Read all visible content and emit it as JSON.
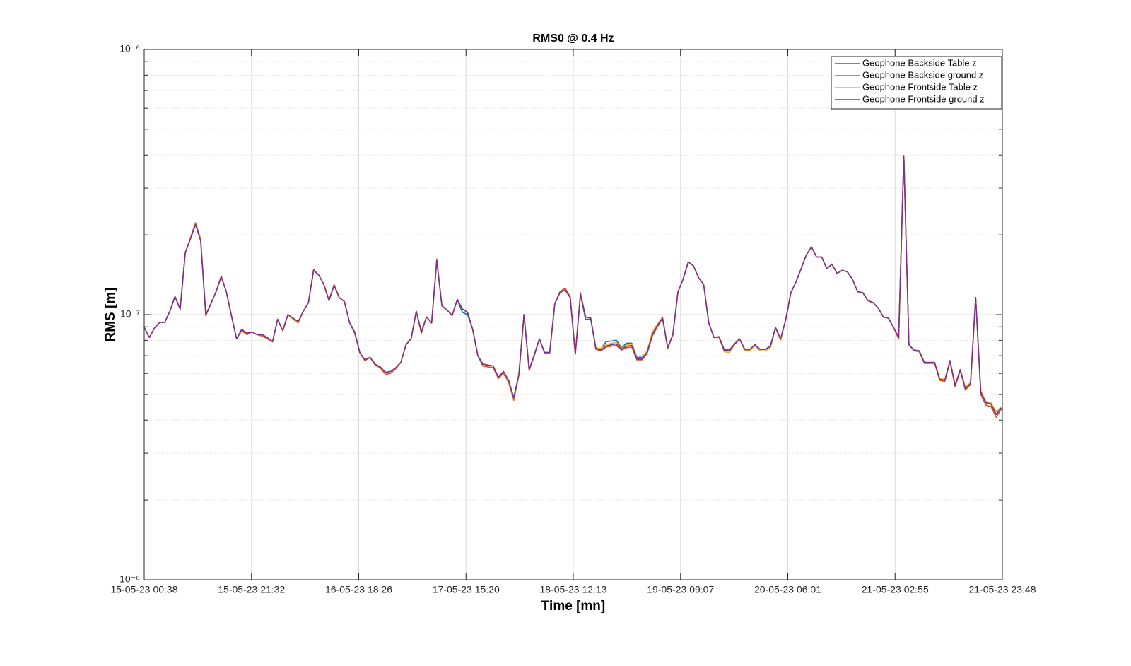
{
  "chart_data": {
    "type": "line",
    "title": "RMS0 @ 0.4 Hz",
    "x_label": "Time [mn]",
    "y_label": "RMS [m]",
    "yscale": "log",
    "grid": true,
    "minor_grid": true,
    "legend": "northeast",
    "xlim": [
      0,
      167.2
    ],
    "xticks": [
      {
        "value": 0,
        "label": "15-05-23 00:38"
      },
      {
        "value": 20.9,
        "label": "15-05-23 21:32"
      },
      {
        "value": 41.8,
        "label": "16-05-23 18:26"
      },
      {
        "value": 62.7,
        "label": "17-05-23 15:20"
      },
      {
        "value": 83.6,
        "label": "18-05-23 12:13"
      },
      {
        "value": 104.5,
        "label": "19-05-23 09:07"
      },
      {
        "value": 125.4,
        "label": "20-05-23 06:01"
      },
      {
        "value": 146.3,
        "label": "21-05-23 02:55"
      },
      {
        "value": 167.2,
        "label": "21-05-23 23:48"
      }
    ],
    "ylim": [
      1e-08,
      1e-06
    ],
    "yticks": [
      {
        "value": 1e-08,
        "label": "10⁻⁸"
      },
      {
        "value": 1e-07,
        "label": "10⁻⁷"
      },
      {
        "value": 1e-06,
        "label": "10⁻⁶"
      }
    ],
    "x": [
      0,
      1,
      2,
      3,
      4,
      5,
      6,
      7,
      8,
      9,
      10,
      11,
      12,
      13,
      14,
      15,
      16,
      17,
      18,
      19,
      20,
      21,
      22,
      23,
      24,
      25,
      26,
      27,
      28,
      29,
      30,
      31,
      32,
      33,
      34,
      35,
      36,
      37,
      38,
      39,
      40,
      41,
      42,
      43,
      44,
      45,
      46,
      47,
      48,
      49,
      50,
      51,
      52,
      53,
      54,
      55,
      56,
      57,
      58,
      59,
      60,
      61,
      62,
      63,
      64,
      65,
      66,
      67,
      68,
      69,
      70,
      71,
      72,
      73,
      74,
      75,
      76,
      77,
      78,
      79,
      80,
      81,
      82,
      83,
      84,
      85,
      86,
      87,
      88,
      89,
      90,
      91,
      92,
      93,
      94,
      95,
      96,
      97,
      98,
      99,
      100,
      101,
      102,
      103,
      104,
      105,
      106,
      107,
      108,
      109,
      110,
      111,
      112,
      113,
      114,
      115,
      116,
      117,
      118,
      119,
      120,
      121,
      122,
      123,
      124,
      125,
      126,
      127,
      128,
      129,
      130,
      131,
      132,
      133,
      134,
      135,
      136,
      137,
      138,
      139,
      140,
      141,
      142,
      143,
      144,
      145,
      146,
      147,
      148,
      149,
      150,
      151,
      152,
      153,
      154,
      155,
      156,
      157,
      158,
      159,
      160,
      161,
      162,
      163,
      164,
      165,
      166,
      167
    ],
    "series": [
      {
        "name": "Geophone Backside Table z",
        "color": "#0072BD",
        "values": [
          8.95e-08,
          8.2e-08,
          8.9e-08,
          9.35e-08,
          9.35e-08,
          1.03e-07,
          1.17e-07,
          1.05e-07,
          1.71e-07,
          1.93e-07,
          2.19e-07,
          1.9e-07,
          1e-07,
          1.1e-07,
          1.22e-07,
          1.39e-07,
          1.22e-07,
          9.9e-08,
          8.1e-08,
          8.8e-08,
          8.5e-08,
          8.6e-08,
          8.4e-08,
          8.4e-08,
          8.2e-08,
          7.9e-08,
          9.6e-08,
          8.7e-08,
          1e-07,
          9.7e-08,
          9.4e-08,
          1.03e-07,
          1.11e-07,
          1.47e-07,
          1.41e-07,
          1.3e-07,
          1.13e-07,
          1.29e-07,
          1.16e-07,
          1.12e-07,
          9.35e-08,
          8.6e-08,
          7.2e-08,
          6.75e-08,
          6.9e-08,
          6.5e-08,
          6.35e-08,
          6.05e-08,
          6.1e-08,
          6.3e-08,
          6.6e-08,
          7.7e-08,
          8.1e-08,
          1.03e-07,
          8.6e-08,
          9.8e-08,
          9.3e-08,
          1.6e-07,
          1.08e-07,
          1.04e-07,
          9.95e-08,
          1.14e-07,
          1.02e-07,
          1e-07,
          8.8e-08,
          7e-08,
          6.5e-08,
          6.45e-08,
          6.4e-08,
          5.8e-08,
          6.1e-08,
          5.65e-08,
          4.85e-08,
          5.95e-08,
          1e-07,
          6.2e-08,
          7.05e-08,
          8.1e-08,
          7.2e-08,
          7.2e-08,
          1.1e-07,
          1.21e-07,
          1.24e-07,
          1.16e-07,
          7.1e-08,
          1.19e-07,
          9.6e-08,
          9.6e-08,
          7.45e-08,
          7.45e-08,
          7.9e-08,
          7.95e-08,
          8e-08,
          7.5e-08,
          7.8e-08,
          7.8e-08,
          6.9e-08,
          6.9e-08,
          7.3e-08,
          8.4e-08,
          9.1e-08,
          9.7e-08,
          7.5e-08,
          8.4e-08,
          1.22e-07,
          1.36e-07,
          1.58e-07,
          1.53e-07,
          1.38e-07,
          1.3e-07,
          9.3e-08,
          8.2e-08,
          8.25e-08,
          7.4e-08,
          7.35e-08,
          7.75e-08,
          8.1e-08,
          7.4e-08,
          7.4e-08,
          7.7e-08,
          7.4e-08,
          7.4e-08,
          7.6e-08,
          8.95e-08,
          8.1e-08,
          9.6e-08,
          1.21e-07,
          1.33e-07,
          1.49e-07,
          1.68e-07,
          1.8e-07,
          1.65e-07,
          1.65e-07,
          1.49e-07,
          1.55e-07,
          1.43e-07,
          1.47e-07,
          1.45e-07,
          1.36e-07,
          1.22e-07,
          1.21e-07,
          1.13e-07,
          1.11e-07,
          1.06e-07,
          9.8e-08,
          9.7e-08,
          8.95e-08,
          8.2e-08,
          3.98e-07,
          7.7e-08,
          7.35e-08,
          7.3e-08,
          6.6e-08,
          6.6e-08,
          6.6e-08,
          5.7e-08,
          5.65e-08,
          6.7e-08,
          5.4e-08,
          6.2e-08,
          5.25e-08,
          5.5e-08,
          1.16e-07,
          5.1e-08,
          4.65e-08,
          4.6e-08,
          4.2e-08,
          4.45e-08
        ]
      },
      {
        "name": "Geophone Backside ground z",
        "color": "#D95319",
        "values": [
          8.95e-08,
          8.2e-08,
          8.9e-08,
          9.35e-08,
          9.35e-08,
          1.03e-07,
          1.17e-07,
          1.05e-07,
          1.71e-07,
          1.95e-07,
          2.22e-07,
          1.93e-07,
          9.9e-08,
          1.1e-07,
          1.22e-07,
          1.4e-07,
          1.22e-07,
          9.9e-08,
          8.1e-08,
          8.7e-08,
          8.4e-08,
          8.6e-08,
          8.4e-08,
          8.3e-08,
          8.1e-08,
          7.9e-08,
          9.6e-08,
          8.7e-08,
          1e-07,
          9.6e-08,
          9.3e-08,
          1.03e-07,
          1.11e-07,
          1.48e-07,
          1.41e-07,
          1.3e-07,
          1.13e-07,
          1.3e-07,
          1.16e-07,
          1.12e-07,
          9.35e-08,
          8.5e-08,
          7.2e-08,
          6.7e-08,
          6.9e-08,
          6.45e-08,
          6.3e-08,
          5.95e-08,
          6e-08,
          6.25e-08,
          6.6e-08,
          7.7e-08,
          8.1e-08,
          1.03e-07,
          8.5e-08,
          9.8e-08,
          9.3e-08,
          1.62e-07,
          1.08e-07,
          1.04e-07,
          9.9e-08,
          1.14e-07,
          1.05e-07,
          1.02e-07,
          8.8e-08,
          7e-08,
          6.4e-08,
          6.35e-08,
          6.3e-08,
          5.75e-08,
          6e-08,
          5.55e-08,
          4.75e-08,
          5.9e-08,
          1e-07,
          6.15e-08,
          7e-08,
          8.1e-08,
          7.15e-08,
          7.15e-08,
          1.1e-07,
          1.22e-07,
          1.26e-07,
          1.17e-07,
          7.1e-08,
          1.21e-07,
          9.8e-08,
          9.7e-08,
          7.4e-08,
          7.3e-08,
          7.55e-08,
          7.6e-08,
          7.65e-08,
          7.35e-08,
          7.5e-08,
          7.55e-08,
          6.75e-08,
          6.75e-08,
          7.15e-08,
          8.3e-08,
          9e-08,
          9.7e-08,
          7.45e-08,
          8.4e-08,
          1.22e-07,
          1.36e-07,
          1.58e-07,
          1.53e-07,
          1.38e-07,
          1.3e-07,
          9.3e-08,
          8.2e-08,
          8.2e-08,
          7.25e-08,
          7.2e-08,
          7.7e-08,
          8.1e-08,
          7.35e-08,
          7.35e-08,
          7.65e-08,
          7.3e-08,
          7.3e-08,
          7.5e-08,
          8.9e-08,
          8e-08,
          9.6e-08,
          1.21e-07,
          1.33e-07,
          1.49e-07,
          1.68e-07,
          1.8e-07,
          1.65e-07,
          1.65e-07,
          1.49e-07,
          1.55e-07,
          1.43e-07,
          1.47e-07,
          1.45e-07,
          1.36e-07,
          1.22e-07,
          1.21e-07,
          1.13e-07,
          1.11e-07,
          1.06e-07,
          9.8e-08,
          9.7e-08,
          8.95e-08,
          8.1e-08,
          3.98e-07,
          7.7e-08,
          7.3e-08,
          7.25e-08,
          6.55e-08,
          6.55e-08,
          6.55e-08,
          5.65e-08,
          5.6e-08,
          6.65e-08,
          5.35e-08,
          6.15e-08,
          5.2e-08,
          5.45e-08,
          1.16e-07,
          5e-08,
          4.55e-08,
          4.5e-08,
          4.1e-08,
          4.4e-08
        ]
      },
      {
        "name": "Geophone Frontside Table z",
        "color": "#EDB120",
        "values": [
          8.95e-08,
          8.2e-08,
          8.9e-08,
          9.35e-08,
          9.35e-08,
          1.03e-07,
          1.17e-07,
          1.05e-07,
          1.71e-07,
          1.94e-07,
          2.2e-07,
          1.92e-07,
          1e-07,
          1.1e-07,
          1.22e-07,
          1.39e-07,
          1.22e-07,
          9.9e-08,
          8.1e-08,
          8.8e-08,
          8.5e-08,
          8.6e-08,
          8.4e-08,
          8.4e-08,
          8.2e-08,
          7.9e-08,
          9.6e-08,
          8.7e-08,
          1e-07,
          9.6e-08,
          9.3e-08,
          1.03e-07,
          1.11e-07,
          1.47e-07,
          1.41e-07,
          1.3e-07,
          1.13e-07,
          1.29e-07,
          1.16e-07,
          1.12e-07,
          9.35e-08,
          8.6e-08,
          7.2e-08,
          6.75e-08,
          6.9e-08,
          6.5e-08,
          6.35e-08,
          6.05e-08,
          6.1e-08,
          6.3e-08,
          6.6e-08,
          7.7e-08,
          8.1e-08,
          1.03e-07,
          8.6e-08,
          9.8e-08,
          9.3e-08,
          1.6e-07,
          1.08e-07,
          1.04e-07,
          9.95e-08,
          1.14e-07,
          1.05e-07,
          1.02e-07,
          8.8e-08,
          7e-08,
          6.5e-08,
          6.45e-08,
          6.4e-08,
          5.8e-08,
          6.1e-08,
          5.6e-08,
          4.8e-08,
          5.95e-08,
          1e-07,
          6.2e-08,
          7.05e-08,
          8.1e-08,
          7.2e-08,
          7.2e-08,
          1.1e-07,
          1.21e-07,
          1.24e-07,
          1.16e-07,
          7.1e-08,
          1.19e-07,
          9.8e-08,
          9.7e-08,
          7.5e-08,
          7.45e-08,
          7.7e-08,
          7.8e-08,
          7.85e-08,
          7.45e-08,
          7.7e-08,
          7.75e-08,
          6.85e-08,
          6.85e-08,
          7.3e-08,
          8.6e-08,
          9.2e-08,
          9.8e-08,
          7.5e-08,
          8.4e-08,
          1.22e-07,
          1.36e-07,
          1.58e-07,
          1.53e-07,
          1.38e-07,
          1.3e-07,
          9.3e-08,
          8.2e-08,
          8.25e-08,
          7.25e-08,
          7.2e-08,
          7.75e-08,
          8.1e-08,
          7.3e-08,
          7.3e-08,
          7.7e-08,
          7.3e-08,
          7.3e-08,
          7.5e-08,
          8.95e-08,
          8e-08,
          9.6e-08,
          1.21e-07,
          1.33e-07,
          1.49e-07,
          1.68e-07,
          1.8e-07,
          1.65e-07,
          1.65e-07,
          1.49e-07,
          1.55e-07,
          1.43e-07,
          1.47e-07,
          1.45e-07,
          1.36e-07,
          1.22e-07,
          1.21e-07,
          1.13e-07,
          1.11e-07,
          1.06e-07,
          9.8e-08,
          9.7e-08,
          8.95e-08,
          8.2e-08,
          3.98e-07,
          7.7e-08,
          7.35e-08,
          7.3e-08,
          6.6e-08,
          6.6e-08,
          6.6e-08,
          5.75e-08,
          5.7e-08,
          6.7e-08,
          5.45e-08,
          6.2e-08,
          5.3e-08,
          5.55e-08,
          1.16e-07,
          5.15e-08,
          4.7e-08,
          4.65e-08,
          4.3e-08,
          4.5e-08
        ]
      },
      {
        "name": "Geophone Frontside ground z",
        "color": "#7E2F8E",
        "values": [
          8.95e-08,
          8.2e-08,
          8.9e-08,
          9.35e-08,
          9.35e-08,
          1.03e-07,
          1.17e-07,
          1.05e-07,
          1.71e-07,
          1.93e-07,
          2.19e-07,
          1.9e-07,
          1e-07,
          1.1e-07,
          1.22e-07,
          1.39e-07,
          1.22e-07,
          9.9e-08,
          8.1e-08,
          8.8e-08,
          8.5e-08,
          8.6e-08,
          8.4e-08,
          8.4e-08,
          8.2e-08,
          7.9e-08,
          9.6e-08,
          8.7e-08,
          1e-07,
          9.7e-08,
          9.4e-08,
          1.03e-07,
          1.11e-07,
          1.47e-07,
          1.41e-07,
          1.3e-07,
          1.13e-07,
          1.29e-07,
          1.16e-07,
          1.12e-07,
          9.35e-08,
          8.6e-08,
          7.2e-08,
          6.75e-08,
          6.9e-08,
          6.5e-08,
          6.35e-08,
          6.05e-08,
          6.1e-08,
          6.3e-08,
          6.6e-08,
          7.7e-08,
          8.1e-08,
          1.03e-07,
          8.6e-08,
          9.8e-08,
          9.3e-08,
          1.6e-07,
          1.08e-07,
          1.04e-07,
          9.95e-08,
          1.14e-07,
          1.05e-07,
          1.02e-07,
          8.8e-08,
          7e-08,
          6.5e-08,
          6.45e-08,
          6.4e-08,
          5.8e-08,
          6.1e-08,
          5.65e-08,
          4.85e-08,
          5.95e-08,
          1e-07,
          6.2e-08,
          7.05e-08,
          8.1e-08,
          7.2e-08,
          7.2e-08,
          1.1e-07,
          1.21e-07,
          1.24e-07,
          1.16e-07,
          7.1e-08,
          1.19e-07,
          9.8e-08,
          9.7e-08,
          7.45e-08,
          7.35e-08,
          7.6e-08,
          7.7e-08,
          7.75e-08,
          7.4e-08,
          7.6e-08,
          7.65e-08,
          6.8e-08,
          6.8e-08,
          7.2e-08,
          8.4e-08,
          9.1e-08,
          9.7e-08,
          7.5e-08,
          8.4e-08,
          1.22e-07,
          1.36e-07,
          1.58e-07,
          1.53e-07,
          1.38e-07,
          1.3e-07,
          9.3e-08,
          8.2e-08,
          8.25e-08,
          7.35e-08,
          7.3e-08,
          7.75e-08,
          8.1e-08,
          7.4e-08,
          7.4e-08,
          7.7e-08,
          7.4e-08,
          7.4e-08,
          7.6e-08,
          8.95e-08,
          8.1e-08,
          9.6e-08,
          1.21e-07,
          1.33e-07,
          1.49e-07,
          1.68e-07,
          1.8e-07,
          1.65e-07,
          1.65e-07,
          1.49e-07,
          1.55e-07,
          1.43e-07,
          1.47e-07,
          1.45e-07,
          1.36e-07,
          1.22e-07,
          1.21e-07,
          1.13e-07,
          1.11e-07,
          1.06e-07,
          9.8e-08,
          9.7e-08,
          8.95e-08,
          8.2e-08,
          3.98e-07,
          7.7e-08,
          7.35e-08,
          7.3e-08,
          6.6e-08,
          6.6e-08,
          6.6e-08,
          5.7e-08,
          5.65e-08,
          6.7e-08,
          5.4e-08,
          6.2e-08,
          5.25e-08,
          5.5e-08,
          1.16e-07,
          5.1e-08,
          4.65e-08,
          4.6e-08,
          4.2e-08,
          4.45e-08
        ]
      }
    ]
  }
}
